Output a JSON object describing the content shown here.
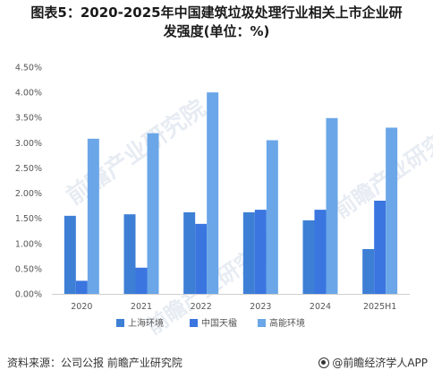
{
  "title_line1": "图表5：2020-2025年中国建筑垃圾处理行业相关上市企业研",
  "title_line2": "发强度(单位：%)",
  "source_text": "资料来源：公司公报 前瞻产业研究院",
  "brand_text": "@前瞻经济学人APP",
  "watermark_text": "前瞻产业研究院",
  "chart_data": {
    "type": "bar",
    "categories": [
      "2020",
      "2021",
      "2022",
      "2023",
      "2024",
      "2025H1"
    ],
    "series": [
      {
        "name": "上海环境",
        "color": "#3e7fd6",
        "values": [
          1.55,
          1.58,
          1.62,
          1.62,
          1.46,
          0.89
        ]
      },
      {
        "name": "中国天楹",
        "color": "#3a75e0",
        "values": [
          0.26,
          0.52,
          1.39,
          1.67,
          1.67,
          1.85
        ]
      },
      {
        "name": "高能环境",
        "color": "#6aa6e8",
        "values": [
          3.08,
          3.19,
          4.0,
          3.05,
          3.49,
          3.3
        ]
      }
    ],
    "ylim": [
      0,
      4.5
    ],
    "yticks": [
      "0.00%",
      "0.50%",
      "1.00%",
      "1.50%",
      "2.00%",
      "2.50%",
      "3.00%",
      "3.50%",
      "4.00%",
      "4.50%"
    ],
    "grid": false,
    "legend_position": "bottom"
  }
}
